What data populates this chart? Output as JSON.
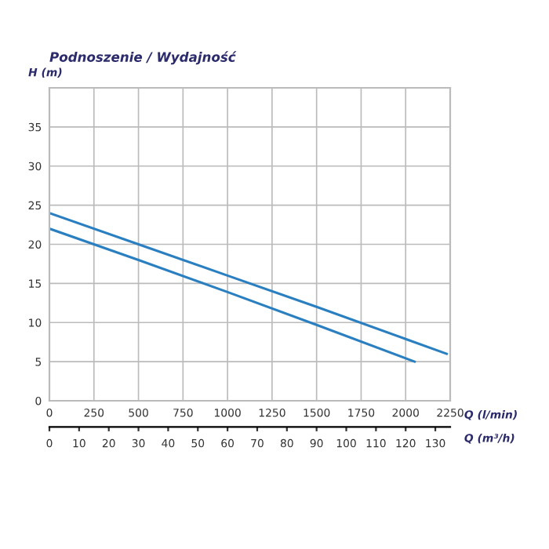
{
  "chart_data": {
    "type": "line",
    "title": "Podnoszenie / Wydajność",
    "ylabel": "H (m)",
    "xlabel": "Q (l/min)",
    "x2label": "Q (m³/h)",
    "series": [
      {
        "color": "#2a7fc1",
        "x": [
          0,
          500,
          1000,
          1500,
          2000,
          2230
        ],
        "values": [
          24,
          20,
          16,
          12,
          7.9,
          6
        ]
      },
      {
        "color": "#2a7fc1",
        "x": [
          0,
          500,
          1000,
          1500,
          2050
        ],
        "values": [
          22,
          18,
          13.9,
          9.7,
          5
        ]
      }
    ],
    "xlim": [
      0,
      2250
    ],
    "xticks": [
      0,
      250,
      500,
      750,
      1000,
      1250,
      1500,
      1750,
      2000,
      2250
    ],
    "x2lim": [
      0,
      135
    ],
    "x2ticks": [
      0,
      10,
      20,
      30,
      40,
      50,
      60,
      70,
      80,
      90,
      100,
      110,
      120,
      130
    ],
    "ylim": [
      0,
      40
    ],
    "yticks": [
      0,
      5,
      10,
      15,
      20,
      25,
      30,
      35
    ],
    "grid": true,
    "legend": false,
    "marker": "none",
    "line_style": "solid"
  }
}
